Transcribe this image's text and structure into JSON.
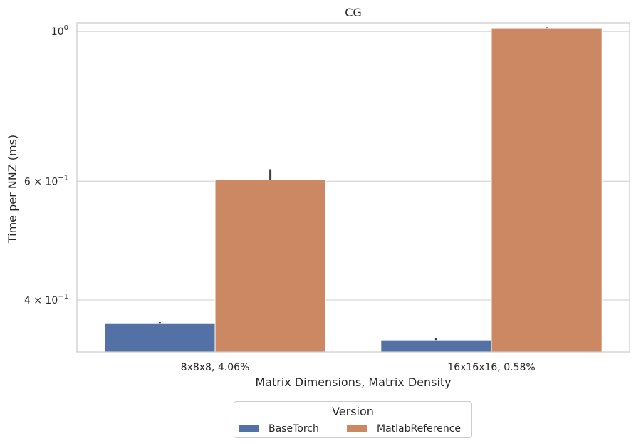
{
  "chart_data": {
    "type": "bar",
    "title": "CG",
    "xlabel": "Matrix Dimensions, Matrix Density",
    "ylabel": "Time per NNZ (ms)",
    "yscale": "log",
    "ylim": [
      0.335,
      1.03
    ],
    "categories": [
      "8x8x8, 4.06%",
      "16x16x16, 0.58%"
    ],
    "series": [
      {
        "name": "BaseTorch",
        "color": "#5471a6",
        "values": [
          0.369,
          0.349
        ],
        "error_high": [
          0.371,
          0.351
        ]
      },
      {
        "name": "MatlabReference",
        "color": "#cc8862",
        "values": [
          0.603,
          1.01
        ],
        "error_high": [
          0.625,
          1.014
        ]
      }
    ],
    "yticks": [
      {
        "value": 1.0,
        "mantissa": "",
        "exponent": "0",
        "base": "10"
      },
      {
        "value": 0.6,
        "mantissa": "6 × ",
        "exponent": "−1",
        "base": "10"
      },
      {
        "value": 0.4,
        "mantissa": "4 × ",
        "exponent": "−1",
        "base": "10"
      }
    ],
    "grid": true,
    "legend": {
      "title": "Version",
      "placement": "bottom-center"
    }
  }
}
